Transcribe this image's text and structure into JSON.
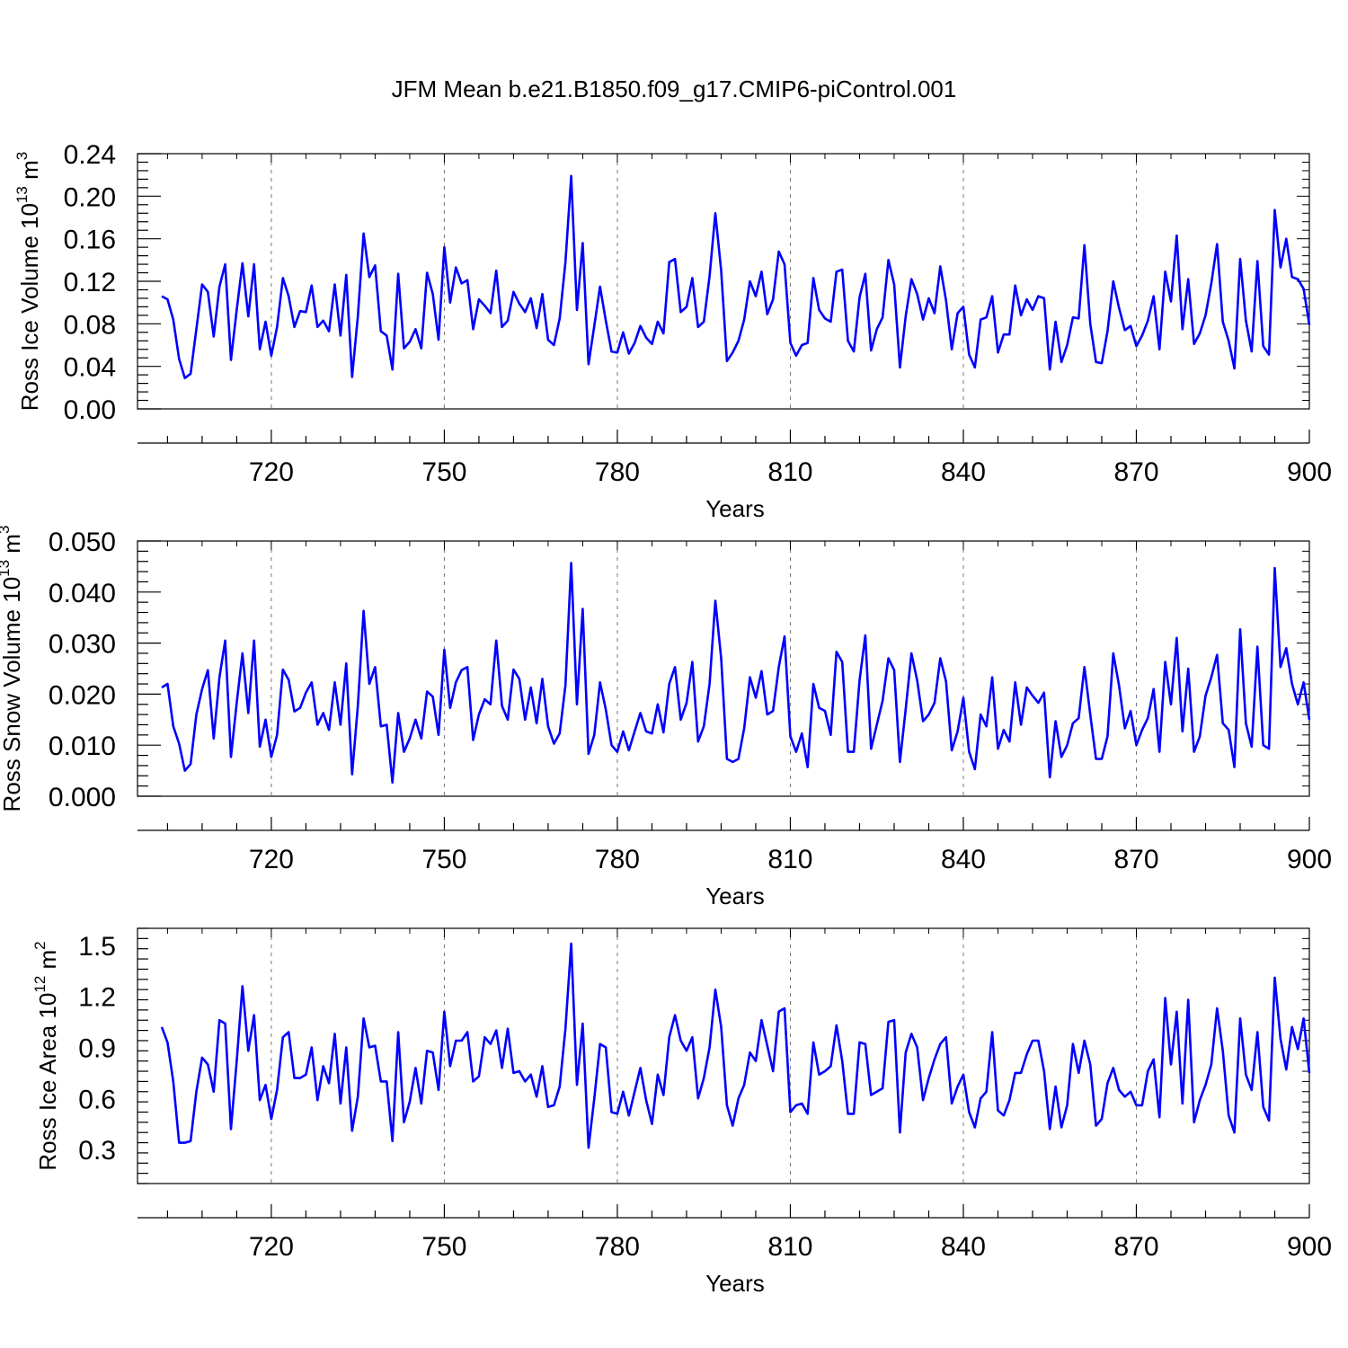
{
  "title": "JFM Mean b.e21.B1850.f09_g17.CMIP6-piControl.001",
  "chart_data": [
    {
      "type": "line",
      "title": "JFM Mean b.e21.B1850.f09_g17.CMIP6-piControl.001",
      "xlabel": "Years",
      "ylabel": "Ross Ice Volume 10",
      "ylabel_sup": "13",
      "ylabel_unit": " m",
      "ylabel_unit_sup": "3",
      "xlim": [
        701,
        900
      ],
      "ylim": [
        0,
        0.24
      ],
      "xticks": [
        720,
        750,
        780,
        810,
        840,
        870,
        900
      ],
      "xtick_labels": [
        "720",
        "750",
        "780",
        "810",
        "840",
        "870",
        "900"
      ],
      "yticks": [
        0,
        0.04,
        0.08,
        0.12,
        0.16,
        0.2,
        0.24
      ],
      "ytick_labels": [
        "0.00",
        "0.04",
        "0.08",
        "0.12",
        "0.16",
        "0.20",
        "0.24"
      ],
      "color": "#0000ff",
      "x_start": 701,
      "values": [
        0.106,
        0.103,
        0.084,
        0.047,
        0.029,
        0.033,
        0.075,
        0.117,
        0.11,
        0.068,
        0.115,
        0.136,
        0.046,
        0.093,
        0.137,
        0.087,
        0.136,
        0.056,
        0.082,
        0.05,
        0.077,
        0.123,
        0.106,
        0.077,
        0.092,
        0.091,
        0.116,
        0.077,
        0.083,
        0.073,
        0.117,
        0.069,
        0.126,
        0.03,
        0.087,
        0.165,
        0.124,
        0.135,
        0.073,
        0.069,
        0.037,
        0.127,
        0.057,
        0.063,
        0.075,
        0.057,
        0.128,
        0.108,
        0.065,
        0.152,
        0.1,
        0.133,
        0.118,
        0.121,
        0.075,
        0.103,
        0.097,
        0.09,
        0.13,
        0.077,
        0.083,
        0.11,
        0.099,
        0.091,
        0.104,
        0.076,
        0.108,
        0.065,
        0.06,
        0.085,
        0.138,
        0.219,
        0.093,
        0.156,
        0.042,
        0.078,
        0.115,
        0.083,
        0.054,
        0.053,
        0.072,
        0.052,
        0.062,
        0.078,
        0.067,
        0.061,
        0.082,
        0.071,
        0.138,
        0.141,
        0.091,
        0.096,
        0.123,
        0.077,
        0.082,
        0.125,
        0.184,
        0.13,
        0.045,
        0.053,
        0.064,
        0.084,
        0.12,
        0.106,
        0.129,
        0.089,
        0.103,
        0.148,
        0.136,
        0.062,
        0.05,
        0.06,
        0.062,
        0.123,
        0.093,
        0.085,
        0.082,
        0.129,
        0.131,
        0.064,
        0.054,
        0.105,
        0.127,
        0.055,
        0.075,
        0.086,
        0.14,
        0.117,
        0.039,
        0.087,
        0.122,
        0.108,
        0.084,
        0.104,
        0.09,
        0.134,
        0.102,
        0.056,
        0.09,
        0.096,
        0.051,
        0.039,
        0.084,
        0.086,
        0.106,
        0.053,
        0.07,
        0.07,
        0.116,
        0.088,
        0.103,
        0.093,
        0.106,
        0.104,
        0.037,
        0.082,
        0.044,
        0.06,
        0.086,
        0.085,
        0.154,
        0.08,
        0.044,
        0.043,
        0.073,
        0.12,
        0.095,
        0.074,
        0.078,
        0.059,
        0.069,
        0.083,
        0.106,
        0.056,
        0.129,
        0.101,
        0.163,
        0.075,
        0.122,
        0.061,
        0.071,
        0.088,
        0.118,
        0.155,
        0.082,
        0.064,
        0.038,
        0.141,
        0.083,
        0.054,
        0.139,
        0.059,
        0.051,
        0.187,
        0.133,
        0.16,
        0.124,
        0.122,
        0.113,
        0.079
      ]
    },
    {
      "type": "line",
      "xlabel": "Years",
      "ylabel": "Ross Snow Volume 10",
      "ylabel_sup": "13",
      "ylabel_unit": " m",
      "ylabel_unit_sup": "3",
      "xlim": [
        701,
        900
      ],
      "ylim": [
        0,
        0.05
      ],
      "xticks": [
        720,
        750,
        780,
        810,
        840,
        870,
        900
      ],
      "xtick_labels": [
        "720",
        "750",
        "780",
        "810",
        "840",
        "870",
        "900"
      ],
      "yticks": [
        0,
        0.01,
        0.02,
        0.03,
        0.04,
        0.05
      ],
      "ytick_labels": [
        "0.000",
        "0.010",
        "0.020",
        "0.030",
        "0.040",
        "0.050"
      ],
      "color": "#0000ff",
      "x_start": 701,
      "values": [
        0.0213,
        0.022,
        0.0137,
        0.0103,
        0.005,
        0.0063,
        0.016,
        0.021,
        0.0247,
        0.0113,
        0.0233,
        0.0305,
        0.0077,
        0.0183,
        0.028,
        0.0163,
        0.0305,
        0.0097,
        0.015,
        0.0077,
        0.012,
        0.0248,
        0.0228,
        0.0166,
        0.0173,
        0.0203,
        0.0223,
        0.014,
        0.0163,
        0.013,
        0.0223,
        0.014,
        0.026,
        0.0043,
        0.0177,
        0.0363,
        0.022,
        0.0253,
        0.0137,
        0.014,
        0.0027,
        0.0163,
        0.0087,
        0.0113,
        0.015,
        0.0113,
        0.0205,
        0.0195,
        0.012,
        0.0287,
        0.0173,
        0.0223,
        0.0247,
        0.0253,
        0.011,
        0.016,
        0.019,
        0.018,
        0.0305,
        0.0177,
        0.015,
        0.0248,
        0.023,
        0.015,
        0.0213,
        0.0143,
        0.023,
        0.0137,
        0.0103,
        0.0123,
        0.0217,
        0.0457,
        0.018,
        0.0367,
        0.0083,
        0.012,
        0.0223,
        0.017,
        0.01,
        0.0087,
        0.0127,
        0.009,
        0.0127,
        0.0163,
        0.0127,
        0.0123,
        0.018,
        0.0125,
        0.022,
        0.0253,
        0.015,
        0.0183,
        0.0263,
        0.0107,
        0.0137,
        0.022,
        0.0383,
        0.027,
        0.0073,
        0.0067,
        0.0073,
        0.0133,
        0.0233,
        0.0193,
        0.0245,
        0.016,
        0.0167,
        0.0253,
        0.0313,
        0.0117,
        0.0087,
        0.0123,
        0.0057,
        0.022,
        0.0173,
        0.0167,
        0.012,
        0.0283,
        0.0263,
        0.0087,
        0.0087,
        0.0227,
        0.0315,
        0.0093,
        0.014,
        0.0187,
        0.027,
        0.0247,
        0.0067,
        0.017,
        0.028,
        0.0227,
        0.0147,
        0.016,
        0.0183,
        0.027,
        0.0225,
        0.009,
        0.0127,
        0.0193,
        0.0087,
        0.0053,
        0.016,
        0.0137,
        0.0233,
        0.0093,
        0.013,
        0.0107,
        0.0223,
        0.014,
        0.0213,
        0.0197,
        0.0183,
        0.0203,
        0.0037,
        0.0147,
        0.0077,
        0.01,
        0.0143,
        0.0153,
        0.0253,
        0.016,
        0.0073,
        0.0073,
        0.0117,
        0.028,
        0.0217,
        0.0133,
        0.0167,
        0.01,
        0.013,
        0.0153,
        0.021,
        0.0087,
        0.0263,
        0.018,
        0.031,
        0.0127,
        0.025,
        0.0087,
        0.0117,
        0.0197,
        0.0233,
        0.0277,
        0.0143,
        0.013,
        0.0057,
        0.0327,
        0.0143,
        0.0097,
        0.0293,
        0.01,
        0.0093,
        0.0447,
        0.0253,
        0.029,
        0.022,
        0.018,
        0.0223,
        0.015
      ]
    },
    {
      "type": "line",
      "xlabel": "Years",
      "ylabel": "Ross Ice Area 10",
      "ylabel_sup": "12",
      "ylabel_unit": " m",
      "ylabel_unit_sup": "2",
      "xlim": [
        701,
        900
      ],
      "ylim": [
        0.1,
        1.6
      ],
      "xticks": [
        720,
        750,
        780,
        810,
        840,
        870,
        900
      ],
      "xtick_labels": [
        "720",
        "750",
        "780",
        "810",
        "840",
        "870",
        "900"
      ],
      "yticks": [
        0.3,
        0.6,
        0.9,
        1.2,
        1.5
      ],
      "ytick_labels": [
        "0.3",
        "0.6",
        "0.9",
        "1.2",
        "1.5"
      ],
      "color": "#0000ff",
      "x_start": 701,
      "values": [
        1.02,
        0.93,
        0.7,
        0.34,
        0.34,
        0.35,
        0.64,
        0.84,
        0.8,
        0.64,
        1.06,
        1.04,
        0.42,
        0.82,
        1.26,
        0.88,
        1.09,
        0.59,
        0.68,
        0.48,
        0.65,
        0.96,
        0.99,
        0.72,
        0.72,
        0.74,
        0.9,
        0.59,
        0.79,
        0.69,
        0.98,
        0.57,
        0.9,
        0.41,
        0.61,
        1.07,
        0.9,
        0.91,
        0.7,
        0.7,
        0.35,
        0.99,
        0.46,
        0.58,
        0.78,
        0.57,
        0.88,
        0.87,
        0.65,
        1.11,
        0.79,
        0.94,
        0.94,
        0.99,
        0.7,
        0.73,
        0.96,
        0.92,
        1.0,
        0.78,
        1.01,
        0.75,
        0.76,
        0.7,
        0.74,
        0.61,
        0.79,
        0.55,
        0.56,
        0.67,
        1.01,
        1.51,
        0.68,
        1.04,
        0.31,
        0.6,
        0.92,
        0.9,
        0.52,
        0.51,
        0.64,
        0.5,
        0.64,
        0.78,
        0.59,
        0.45,
        0.74,
        0.62,
        0.96,
        1.09,
        0.94,
        0.88,
        0.96,
        0.6,
        0.72,
        0.9,
        1.24,
        1.02,
        0.56,
        0.44,
        0.6,
        0.68,
        0.87,
        0.82,
        1.06,
        0.91,
        0.76,
        1.11,
        1.13,
        0.52,
        0.56,
        0.57,
        0.51,
        0.93,
        0.74,
        0.76,
        0.79,
        1.03,
        0.82,
        0.51,
        0.51,
        0.93,
        0.92,
        0.62,
        0.64,
        0.66,
        1.05,
        1.06,
        0.4,
        0.87,
        0.98,
        0.9,
        0.59,
        0.72,
        0.83,
        0.92,
        0.96,
        0.57,
        0.67,
        0.74,
        0.52,
        0.43,
        0.6,
        0.64,
        0.99,
        0.53,
        0.5,
        0.59,
        0.75,
        0.75,
        0.86,
        0.94,
        0.94,
        0.76,
        0.42,
        0.67,
        0.43,
        0.56,
        0.92,
        0.75,
        0.94,
        0.8,
        0.44,
        0.48,
        0.69,
        0.78,
        0.65,
        0.61,
        0.64,
        0.56,
        0.56,
        0.76,
        0.83,
        0.49,
        1.19,
        0.8,
        1.11,
        0.57,
        1.18,
        0.46,
        0.59,
        0.68,
        0.8,
        1.13,
        0.88,
        0.5,
        0.4,
        1.07,
        0.74,
        0.65,
        0.99,
        0.55,
        0.47,
        1.31,
        0.95,
        0.77,
        1.02,
        0.89,
        1.07,
        0.75
      ]
    }
  ]
}
